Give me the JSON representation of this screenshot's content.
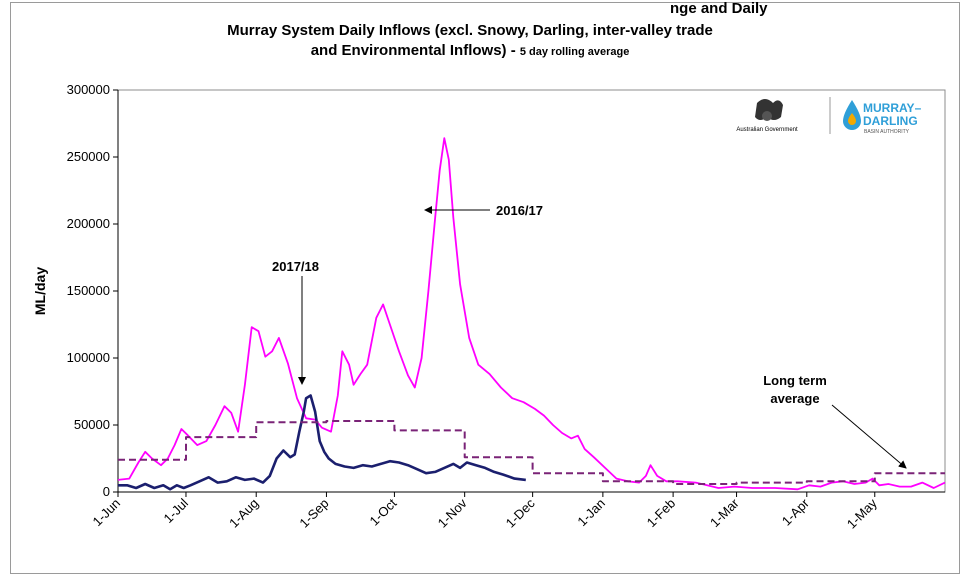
{
  "chart_data": {
    "type": "line",
    "title_line1": "Murray System Daily Inflows (excl. Snowy, Darling, inter-valley trade",
    "title_line2": "and Environmental Inflows) -",
    "subtitle": "5 day rolling average",
    "top_cutoff_text": "nge and Daily",
    "ylabel": "ML/day",
    "xlabel": "",
    "ylim": [
      0,
      300000
    ],
    "y_ticks": [
      "0",
      "50000",
      "100000",
      "150000",
      "200000",
      "250000",
      "300000"
    ],
    "x_ticks": [
      "1-Jun",
      "1-Jul",
      "1-Aug",
      "1-Sep",
      "1-Oct",
      "1-Nov",
      "1-Dec",
      "1-Jan",
      "1-Feb",
      "1-Mar",
      "1-Apr",
      "1-May"
    ],
    "grid": false,
    "series": [
      {
        "name": "2016/17",
        "color": "#ff00ff",
        "style": "solid",
        "points": [
          [
            0,
            9000
          ],
          [
            5,
            10000
          ],
          [
            9,
            22000
          ],
          [
            12,
            30000
          ],
          [
            15,
            25000
          ],
          [
            19,
            20000
          ],
          [
            22,
            25000
          ],
          [
            25,
            35000
          ],
          [
            28,
            47000
          ],
          [
            31,
            42000
          ],
          [
            35,
            35000
          ],
          [
            39,
            38000
          ],
          [
            43,
            50000
          ],
          [
            47,
            64000
          ],
          [
            50,
            59000
          ],
          [
            53,
            45000
          ],
          [
            56,
            80000
          ],
          [
            59,
            123000
          ],
          [
            62,
            120000
          ],
          [
            65,
            101000
          ],
          [
            68,
            105000
          ],
          [
            71,
            115000
          ],
          [
            75,
            96000
          ],
          [
            79,
            70000
          ],
          [
            83,
            55000
          ],
          [
            87,
            54000
          ],
          [
            90,
            48000
          ],
          [
            94,
            45000
          ],
          [
            97,
            72000
          ],
          [
            99,
            105000
          ],
          [
            102,
            95000
          ],
          [
            104,
            80000
          ],
          [
            107,
            88000
          ],
          [
            110,
            95000
          ],
          [
            114,
            130000
          ],
          [
            117,
            140000
          ],
          [
            120,
            125000
          ],
          [
            124,
            105000
          ],
          [
            128,
            87000
          ],
          [
            131,
            78000
          ],
          [
            134,
            100000
          ],
          [
            137,
            150000
          ],
          [
            140,
            205000
          ],
          [
            142,
            240000
          ],
          [
            144,
            264000
          ],
          [
            146,
            248000
          ],
          [
            148,
            205000
          ],
          [
            151,
            155000
          ],
          [
            155,
            115000
          ],
          [
            159,
            95000
          ],
          [
            164,
            88000
          ],
          [
            169,
            78000
          ],
          [
            174,
            70000
          ],
          [
            179,
            67000
          ],
          [
            184,
            62000
          ],
          [
            188,
            57000
          ],
          [
            192,
            50000
          ],
          [
            196,
            44000
          ],
          [
            200,
            40000
          ],
          [
            203,
            42000
          ],
          [
            206,
            32000
          ],
          [
            210,
            26000
          ],
          [
            215,
            18000
          ],
          [
            220,
            10000
          ],
          [
            225,
            8000
          ],
          [
            230,
            7000
          ],
          [
            233,
            12000
          ],
          [
            235,
            20000
          ],
          [
            238,
            12000
          ],
          [
            242,
            8000
          ],
          [
            247,
            8000
          ],
          [
            255,
            7000
          ],
          [
            260,
            5000
          ],
          [
            265,
            3000
          ],
          [
            272,
            4000
          ],
          [
            280,
            3000
          ],
          [
            290,
            3000
          ],
          [
            300,
            2000
          ],
          [
            305,
            5000
          ],
          [
            310,
            4000
          ],
          [
            315,
            7000
          ],
          [
            320,
            8000
          ],
          [
            325,
            6000
          ],
          [
            330,
            7000
          ],
          [
            333,
            10000
          ],
          [
            336,
            5000
          ],
          [
            340,
            6000
          ],
          [
            345,
            4000
          ],
          [
            350,
            4000
          ],
          [
            355,
            7000
          ],
          [
            360,
            3000
          ],
          [
            365,
            7000
          ]
        ]
      },
      {
        "name": "2017/18",
        "color": "#1b1f6e",
        "style": "solid",
        "points": [
          [
            0,
            5000
          ],
          [
            4,
            5000
          ],
          [
            8,
            3000
          ],
          [
            12,
            6000
          ],
          [
            16,
            3000
          ],
          [
            20,
            5000
          ],
          [
            23,
            2000
          ],
          [
            26,
            5000
          ],
          [
            29,
            3000
          ],
          [
            32,
            5000
          ],
          [
            36,
            8000
          ],
          [
            40,
            11000
          ],
          [
            44,
            7000
          ],
          [
            48,
            8000
          ],
          [
            52,
            11000
          ],
          [
            56,
            9000
          ],
          [
            60,
            10000
          ],
          [
            64,
            7000
          ],
          [
            67,
            12000
          ],
          [
            70,
            25000
          ],
          [
            73,
            31000
          ],
          [
            76,
            26000
          ],
          [
            78,
            28000
          ],
          [
            80,
            45000
          ],
          [
            82,
            60000
          ],
          [
            83,
            70000
          ],
          [
            85,
            72000
          ],
          [
            87,
            60000
          ],
          [
            89,
            38000
          ],
          [
            91,
            30000
          ],
          [
            93,
            25000
          ],
          [
            96,
            21000
          ],
          [
            100,
            19000
          ],
          [
            104,
            18000
          ],
          [
            108,
            20000
          ],
          [
            112,
            19000
          ],
          [
            116,
            21000
          ],
          [
            120,
            23000
          ],
          [
            124,
            22000
          ],
          [
            128,
            20000
          ],
          [
            132,
            17000
          ],
          [
            136,
            14000
          ],
          [
            140,
            15000
          ],
          [
            144,
            18000
          ],
          [
            148,
            21000
          ],
          [
            151,
            18000
          ],
          [
            154,
            22000
          ],
          [
            158,
            20000
          ],
          [
            162,
            18000
          ],
          [
            166,
            15000
          ],
          [
            170,
            13000
          ],
          [
            175,
            10000
          ],
          [
            180,
            9000
          ]
        ]
      },
      {
        "name": "Long term average",
        "color": "#7a2377",
        "style": "dashed",
        "points": [
          [
            0,
            24000
          ],
          [
            30,
            24000
          ],
          [
            30,
            41000
          ],
          [
            61,
            41000
          ],
          [
            61,
            52000
          ],
          [
            92,
            52000
          ],
          [
            92,
            53000
          ],
          [
            122,
            53000
          ],
          [
            122,
            46000
          ],
          [
            153,
            46000
          ],
          [
            153,
            26000
          ],
          [
            183,
            26000
          ],
          [
            183,
            14000
          ],
          [
            214,
            14000
          ],
          [
            214,
            8000
          ],
          [
            245,
            8000
          ],
          [
            245,
            6000
          ],
          [
            273,
            6000
          ],
          [
            273,
            7000
          ],
          [
            304,
            7000
          ],
          [
            304,
            8000
          ],
          [
            334,
            8000
          ],
          [
            334,
            14000
          ],
          [
            365,
            14000
          ]
        ]
      }
    ],
    "annotations": [
      {
        "text": "2016/17"
      },
      {
        "text": "2017/18"
      },
      {
        "text": "Long term"
      },
      {
        "text": "average"
      }
    ]
  },
  "logo": {
    "gov_text": "Australian Government",
    "mdba_line1": "MURRAY–",
    "mdba_line2": "DARLING",
    "mdba_line3": "BASIN AUTHORITY"
  },
  "colors": {
    "series_2016": "#ff00ff",
    "series_2017": "#1b1f6e",
    "average": "#7a2377",
    "mdba_blue": "#2f9fd8"
  }
}
